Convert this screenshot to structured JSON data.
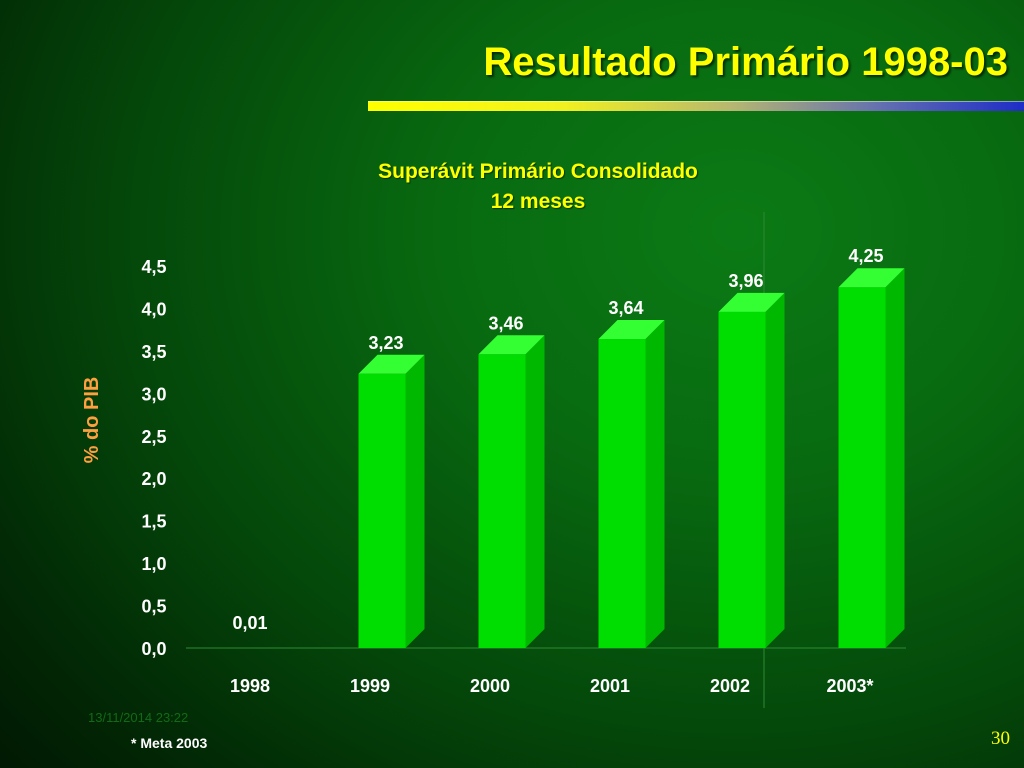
{
  "slide": {
    "title": "Resultado Primário 1998-03",
    "timestamp": "13/11/2014 23:22",
    "footnote": "* Meta 2003",
    "page_number": "30"
  },
  "colors": {
    "title_text": "#ffff00",
    "bar_front": "#00dd00",
    "bar_side": "#00b800",
    "bar_top": "#33ff33",
    "axis_label": "#ffa040",
    "tick_text": "#ffffff"
  },
  "chart_data": {
    "type": "bar",
    "title": "Superávit Primário Consolidado",
    "subtitle": "12 meses",
    "ylabel": "% do PIB",
    "xlabel": "",
    "categories": [
      "1998",
      "1999",
      "2000",
      "2001",
      "2002",
      "2003*"
    ],
    "values": [
      0.01,
      3.23,
      3.46,
      3.64,
      3.96,
      4.25
    ],
    "value_labels": [
      "0,01",
      "3,23",
      "3,46",
      "3,64",
      "3,96",
      "4,25"
    ],
    "yticks": [
      "0,0",
      "0,5",
      "1,0",
      "1,5",
      "2,0",
      "2,5",
      "3,0",
      "3,5",
      "4,0",
      "4,5"
    ],
    "ylim": [
      0,
      4.5
    ],
    "grid": false,
    "legend": "none",
    "separator_before_category": "2003*"
  }
}
